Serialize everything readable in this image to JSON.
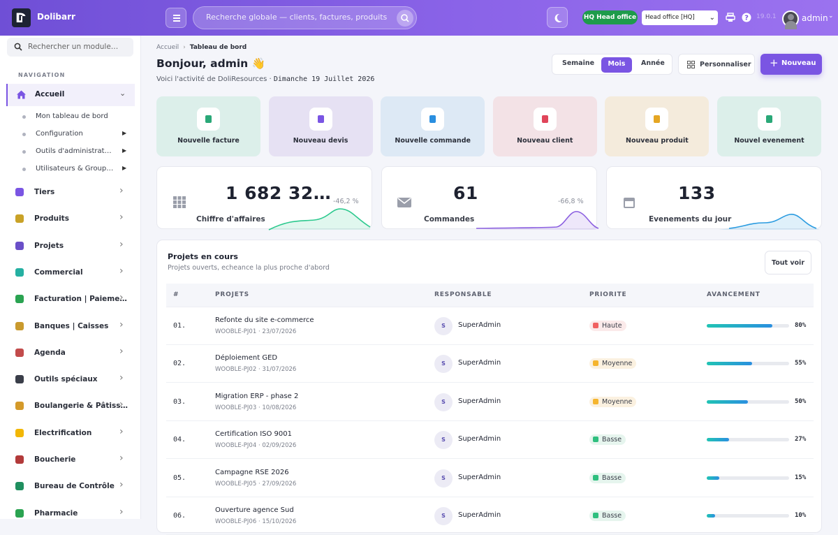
{
  "app": {
    "name": "Dolibarr",
    "logo_letter": "D"
  },
  "topbar": {
    "search_placeholder": "Recherche globale — clients, factures, produits…",
    "entity_badge": "HQ Head office",
    "entity_select": "Head office [HQ]",
    "version": "19.0.1",
    "user": "admin"
  },
  "sidebar": {
    "search_placeholder": "Rechercher un module…",
    "section": "NAVIGATION",
    "active": {
      "label": "Accueil",
      "icon": "home-icon"
    },
    "subitems": [
      {
        "label": "Mon tableau de bord",
        "has_arrow": false
      },
      {
        "label": "Configuration",
        "has_arrow": true
      },
      {
        "label": "Outils d'administrat…",
        "has_arrow": true
      },
      {
        "label": "Utilisateurs & Group…",
        "has_arrow": true
      }
    ],
    "items": [
      {
        "label": "Tiers",
        "icon": "building-icon",
        "color": "#7a55e3"
      },
      {
        "label": "Produits",
        "icon": "box-icon",
        "color": "#c9a227"
      },
      {
        "label": "Projets",
        "icon": "network-icon",
        "color": "#6a4fc8"
      },
      {
        "label": "Commercial",
        "icon": "briefcase-icon",
        "color": "#25b0a2"
      },
      {
        "label": "Facturation | Paieme…",
        "icon": "invoice-icon",
        "color": "#2aa351"
      },
      {
        "label": "Banques | Caisses",
        "icon": "bank-icon",
        "color": "#c99a2e"
      },
      {
        "label": "Agenda",
        "icon": "calendar-icon",
        "color": "#c24b4b"
      },
      {
        "label": "Outils spéciaux",
        "icon": "wrench-icon",
        "color": "#3a3e49"
      },
      {
        "label": "Boulangerie & Pâtiss…",
        "icon": "bread-icon",
        "color": "#d49a2a"
      },
      {
        "label": "Electrification",
        "icon": "bolt-icon",
        "color": "#f2b705"
      },
      {
        "label": "Boucherie",
        "icon": "meat-icon",
        "color": "#b23a3a"
      },
      {
        "label": "Bureau de Contrôle",
        "icon": "shield-icon",
        "color": "#1f8f5f"
      },
      {
        "label": "Pharmacie",
        "icon": "cross-icon",
        "color": "#2aa351"
      }
    ]
  },
  "breadcrumb": {
    "home": "Accueil",
    "current": "Tableau de bord"
  },
  "greeting": {
    "title": "Bonjour, admin 👋",
    "sub": "Voici l'activité de DoliResources ·",
    "date": "Dimanche 19 Juillet 2026"
  },
  "period": {
    "week": "Semaine",
    "month": "Mois",
    "year": "Année"
  },
  "buttons": {
    "customize": "Personnaliser",
    "new": "Nouveau",
    "see_all": "Tout voir"
  },
  "quick_actions": [
    {
      "label": "Nouvelle facture",
      "bg": "#dcefea",
      "color": "#2aa878",
      "icon": "invoice-icon"
    },
    {
      "label": "Nouveau devis",
      "bg": "#e6e1f3",
      "color": "#7a55e3",
      "icon": "quote-icon"
    },
    {
      "label": "Nouvelle commande",
      "bg": "#dde9f5",
      "color": "#2a8fe0",
      "icon": "cart-icon"
    },
    {
      "label": "Nouveau client",
      "bg": "#f3e2e6",
      "color": "#e0455a",
      "icon": "building-icon"
    },
    {
      "label": "Nouveau produit",
      "bg": "#f4ebdc",
      "color": "#e5a623",
      "icon": "box-icon"
    },
    {
      "label": "Nouvel evenement",
      "bg": "#dcefea",
      "color": "#2aa878",
      "icon": "calendar-plus-icon"
    }
  ],
  "kpis": [
    {
      "value": "1 682 32…",
      "delta": "-46,2 %",
      "label": "Chiffre d'affaires",
      "icon": "grid-icon",
      "color": "#2cc98e"
    },
    {
      "value": "61",
      "delta": "-66,8 %",
      "label": "Commandes",
      "icon": "mail-icon",
      "color": "#8b5fe0"
    },
    {
      "value": "133",
      "delta": "",
      "label": "Evenements du jour",
      "icon": "calendar-icon",
      "color": "#2a9be0"
    }
  ],
  "projects": {
    "title": "Projets en cours",
    "subtitle": "Projets ouverts, echeance la plus proche d'abord",
    "headers": {
      "num": "#",
      "project": "PROJETS",
      "owner": "RESPONSABLE",
      "priority": "PRIORITE",
      "progress": "AVANCEMENT"
    },
    "rows": [
      {
        "num": "01.",
        "name": "Refonte du site e-commerce",
        "ref": "WOOBLE-PJ01 · 23/07/2026",
        "initial": "S",
        "owner": "SuperAdmin",
        "priority": "Haute",
        "prio_color": "#f06060",
        "prio_bg": "#fbeaea",
        "progress": 80,
        "pct": "80%"
      },
      {
        "num": "02.",
        "name": "Déploiement GED",
        "ref": "WOOBLE-PJ02 · 31/07/2026",
        "initial": "S",
        "owner": "SuperAdmin",
        "priority": "Moyenne",
        "prio_color": "#f5b52e",
        "prio_bg": "#fbf1e0",
        "progress": 55,
        "pct": "55%"
      },
      {
        "num": "03.",
        "name": "Migration ERP - phase 2",
        "ref": "WOOBLE-PJ03 · 10/08/2026",
        "initial": "S",
        "owner": "SuperAdmin",
        "priority": "Moyenne",
        "prio_color": "#f5b52e",
        "prio_bg": "#fbf1e0",
        "progress": 50,
        "pct": "50%"
      },
      {
        "num": "04.",
        "name": "Certification ISO 9001",
        "ref": "WOOBLE-PJ04 · 02/09/2026",
        "initial": "S",
        "owner": "SuperAdmin",
        "priority": "Basse",
        "prio_color": "#2fbf7f",
        "prio_bg": "#e6f5ee",
        "progress": 27,
        "pct": "27%"
      },
      {
        "num": "05.",
        "name": "Campagne RSE 2026",
        "ref": "WOOBLE-PJ05 · 27/09/2026",
        "initial": "S",
        "owner": "SuperAdmin",
        "priority": "Basse",
        "prio_color": "#2fbf7f",
        "prio_bg": "#e6f5ee",
        "progress": 15,
        "pct": "15%"
      },
      {
        "num": "06.",
        "name": "Ouverture agence Sud",
        "ref": "WOOBLE-PJ06 · 15/10/2026",
        "initial": "S",
        "owner": "SuperAdmin",
        "priority": "Basse",
        "prio_color": "#2fbf7f",
        "prio_bg": "#e6f5ee",
        "progress": 10,
        "pct": "10%"
      }
    ]
  }
}
